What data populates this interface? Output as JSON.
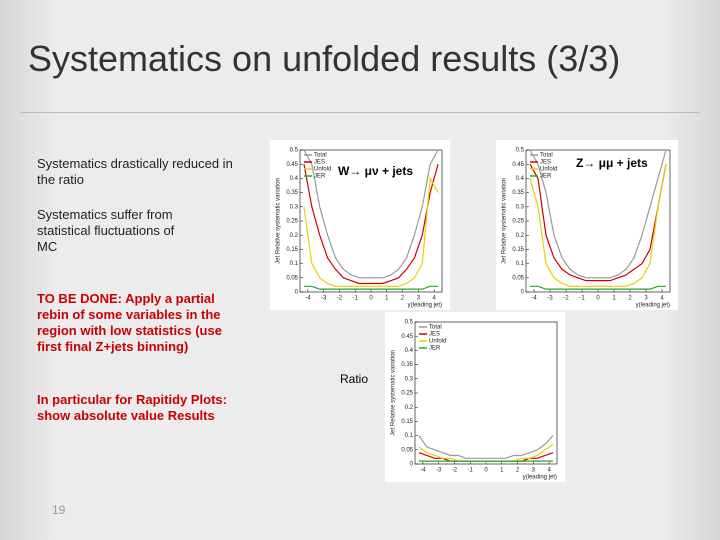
{
  "title": "Systematics on unfolded results (3/3)",
  "bullets": [
    "Systematics drastically reduced in the ratio",
    "Systematics suffer from statistical fluctuations of MC"
  ],
  "todo": [
    "TO BE DONE: Apply a partial rebin of some variables in the region with low statistics (use first final Z+jets binning)",
    "In particular for Rapitidy Plots: show absolute value Results"
  ],
  "page_number": "19",
  "chart_data": [
    {
      "type": "line",
      "annotation": "W→ μν + jets",
      "ylabel": "Jet Relative systematic variation",
      "xlabel": "y(leading jet)",
      "x": [
        -4.25,
        -3.75,
        -3.25,
        -2.75,
        -2.25,
        -1.75,
        -1.25,
        -0.75,
        -0.25,
        0.25,
        0.75,
        1.25,
        1.75,
        2.25,
        2.75,
        3.25,
        3.75,
        4.25
      ],
      "xlim": [
        -4.5,
        4.5
      ],
      "xticks": [
        -4,
        -3,
        -2,
        -1,
        0,
        1,
        2,
        3,
        4
      ],
      "ylim": [
        0,
        0.5
      ],
      "yticks": [
        0,
        0.05,
        0.1,
        0.15,
        0.2,
        0.25,
        0.3,
        0.35,
        0.4,
        0.45,
        0.5
      ],
      "series": [
        {
          "name": "Total",
          "color": "#999999",
          "values": [
            0.5,
            0.45,
            0.3,
            0.2,
            0.12,
            0.08,
            0.06,
            0.05,
            0.05,
            0.05,
            0.05,
            0.06,
            0.08,
            0.12,
            0.2,
            0.3,
            0.45,
            0.5
          ]
        },
        {
          "name": "JES",
          "color": "#cc0000",
          "values": [
            0.45,
            0.3,
            0.2,
            0.12,
            0.08,
            0.05,
            0.04,
            0.03,
            0.03,
            0.03,
            0.03,
            0.04,
            0.05,
            0.08,
            0.12,
            0.2,
            0.35,
            0.45
          ]
        },
        {
          "name": "Unfold",
          "color": "#e8d000",
          "values": [
            0.3,
            0.1,
            0.05,
            0.03,
            0.02,
            0.02,
            0.02,
            0.02,
            0.02,
            0.02,
            0.02,
            0.02,
            0.02,
            0.03,
            0.05,
            0.1,
            0.4,
            0.35
          ]
        },
        {
          "name": "JER",
          "color": "#22aa22",
          "values": [
            0.02,
            0.02,
            0.01,
            0.01,
            0.01,
            0.01,
            0.01,
            0.01,
            0.01,
            0.01,
            0.01,
            0.01,
            0.01,
            0.01,
            0.01,
            0.01,
            0.02,
            0.02
          ]
        }
      ]
    },
    {
      "type": "line",
      "annotation": "Z→ μμ + jets",
      "ylabel": "Jet Relative systematic variation",
      "xlabel": "y(leading jet)",
      "x": [
        -4.25,
        -3.75,
        -3.25,
        -2.75,
        -2.25,
        -1.75,
        -1.25,
        -0.75,
        -0.25,
        0.25,
        0.75,
        1.25,
        1.75,
        2.25,
        2.75,
        3.25,
        3.75,
        4.25
      ],
      "xlim": [
        -4.5,
        4.5
      ],
      "xticks": [
        -4,
        -3,
        -2,
        -1,
        0,
        1,
        2,
        3,
        4
      ],
      "ylim": [
        0,
        0.5
      ],
      "yticks": [
        0,
        0.05,
        0.1,
        0.15,
        0.2,
        0.25,
        0.3,
        0.35,
        0.4,
        0.45,
        0.5
      ],
      "series": [
        {
          "name": "Total",
          "color": "#999999",
          "values": [
            0.5,
            0.45,
            0.35,
            0.2,
            0.12,
            0.08,
            0.06,
            0.05,
            0.05,
            0.05,
            0.05,
            0.06,
            0.08,
            0.12,
            0.2,
            0.3,
            0.4,
            0.5
          ]
        },
        {
          "name": "JES",
          "color": "#cc0000",
          "values": [
            0.45,
            0.4,
            0.2,
            0.12,
            0.08,
            0.06,
            0.05,
            0.04,
            0.04,
            0.04,
            0.04,
            0.05,
            0.06,
            0.08,
            0.1,
            0.15,
            0.3,
            0.45
          ]
        },
        {
          "name": "Unfold",
          "color": "#e8d000",
          "values": [
            0.4,
            0.3,
            0.1,
            0.05,
            0.03,
            0.02,
            0.02,
            0.02,
            0.02,
            0.02,
            0.02,
            0.02,
            0.02,
            0.03,
            0.05,
            0.1,
            0.3,
            0.45
          ]
        },
        {
          "name": "JER",
          "color": "#22aa22",
          "values": [
            0.02,
            0.02,
            0.01,
            0.01,
            0.01,
            0.01,
            0.01,
            0.01,
            0.01,
            0.01,
            0.01,
            0.01,
            0.01,
            0.01,
            0.01,
            0.01,
            0.02,
            0.02
          ]
        }
      ]
    },
    {
      "type": "line",
      "annotation": "Ratio",
      "ylabel": "Jet Relative systematic variation",
      "xlabel": "y(leading jet)",
      "x": [
        -4.25,
        -3.75,
        -3.25,
        -2.75,
        -2.25,
        -1.75,
        -1.25,
        -0.75,
        -0.25,
        0.25,
        0.75,
        1.25,
        1.75,
        2.25,
        2.75,
        3.25,
        3.75,
        4.25
      ],
      "xlim": [
        -4.5,
        4.5
      ],
      "xticks": [
        -4,
        -3,
        -2,
        -1,
        0,
        1,
        2,
        3,
        4
      ],
      "ylim": [
        0,
        0.5
      ],
      "yticks": [
        0,
        0.05,
        0.1,
        0.15,
        0.2,
        0.25,
        0.3,
        0.35,
        0.4,
        0.45,
        0.5
      ],
      "series": [
        {
          "name": "Total",
          "color": "#999999",
          "values": [
            0.1,
            0.06,
            0.05,
            0.04,
            0.03,
            0.03,
            0.02,
            0.02,
            0.02,
            0.02,
            0.02,
            0.02,
            0.03,
            0.03,
            0.04,
            0.05,
            0.07,
            0.1
          ]
        },
        {
          "name": "JES",
          "color": "#cc0000",
          "values": [
            0.04,
            0.03,
            0.02,
            0.02,
            0.01,
            0.01,
            0.01,
            0.01,
            0.01,
            0.01,
            0.01,
            0.01,
            0.01,
            0.01,
            0.02,
            0.02,
            0.03,
            0.04
          ]
        },
        {
          "name": "Unfold",
          "color": "#e8d000",
          "values": [
            0.06,
            0.04,
            0.03,
            0.02,
            0.02,
            0.01,
            0.01,
            0.01,
            0.01,
            0.01,
            0.01,
            0.01,
            0.01,
            0.02,
            0.02,
            0.03,
            0.05,
            0.07
          ]
        },
        {
          "name": "JER",
          "color": "#22aa22",
          "values": [
            0.01,
            0.01,
            0.01,
            0.01,
            0.01,
            0.01,
            0.01,
            0.01,
            0.01,
            0.01,
            0.01,
            0.01,
            0.01,
            0.01,
            0.01,
            0.01,
            0.01,
            0.01
          ]
        }
      ]
    }
  ]
}
